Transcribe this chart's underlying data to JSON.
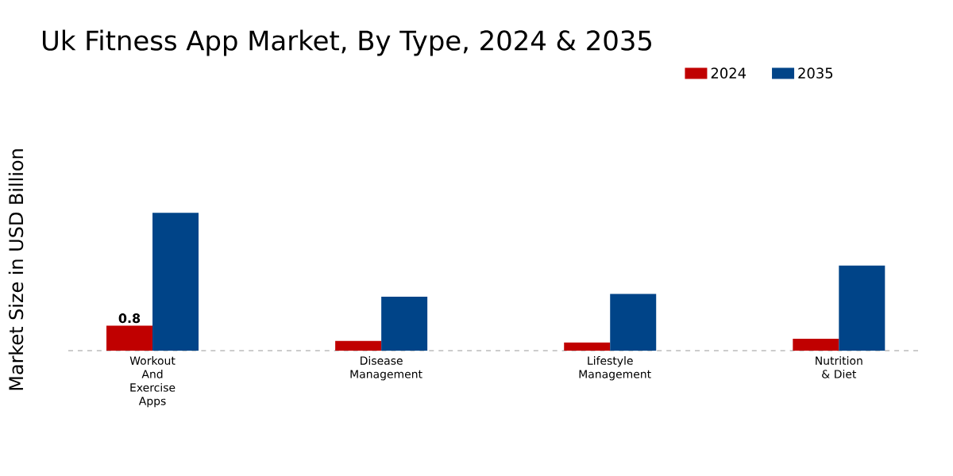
{
  "chart_data": {
    "type": "bar",
    "title": "Uk Fitness App Market, By Type, 2024 & 2035",
    "ylabel": "Market Size in USD Billion",
    "categories": [
      "Workout And Exercise Apps",
      "Disease Management",
      "Lifestyle Management",
      "Nutrition & Diet"
    ],
    "series": [
      {
        "name": "2024",
        "color": "#c00000",
        "values": [
          0.8,
          0.31,
          0.26,
          0.38
        ],
        "value_labels": [
          "0.8",
          null,
          null,
          null
        ]
      },
      {
        "name": "2035",
        "color": "#004488",
        "values": [
          4.42,
          1.73,
          1.82,
          2.73
        ]
      }
    ],
    "legend": "top right",
    "tick_labels": "x"
  }
}
